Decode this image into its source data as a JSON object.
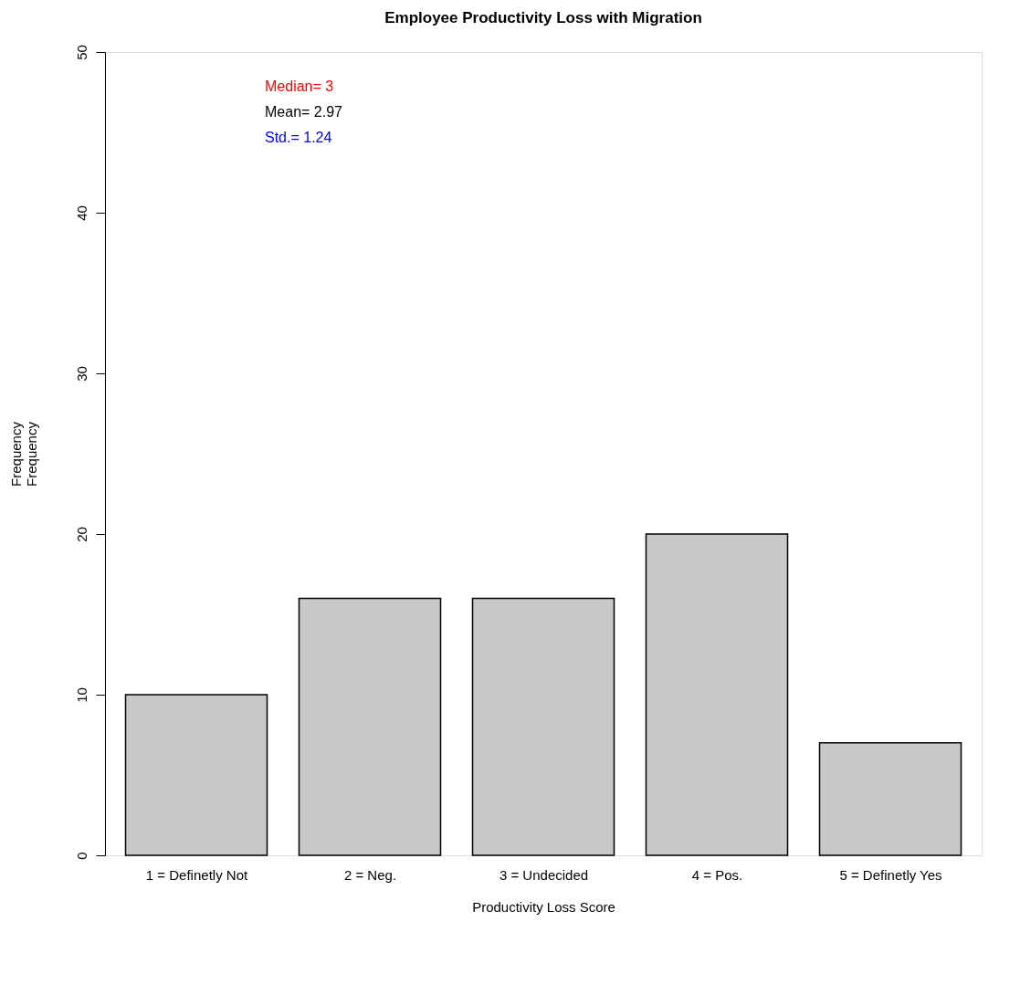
{
  "chart_data": {
    "type": "bar",
    "title": "Employee Productivity Loss with Migration",
    "xlabel": "Productivity Loss Score",
    "ylabel": "Frequency\nFrequency",
    "categories": [
      "1 = Definetly Not",
      "2 = Neg.",
      "3 = Undecided",
      "4 = Pos.",
      "5 = Definetly Yes"
    ],
    "values": [
      10,
      16,
      16,
      20,
      7
    ],
    "color": "#c8c8c8",
    "ylim": [
      0,
      50
    ],
    "yticks": [
      0,
      10,
      20,
      30,
      40,
      50
    ],
    "grid": false,
    "annotations": [
      "Median= 3",
      "Mean= 2.97",
      "Std.= 1.24"
    ]
  }
}
